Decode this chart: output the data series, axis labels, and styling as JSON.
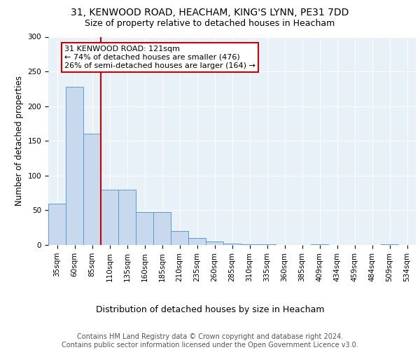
{
  "title_line1": "31, KENWOOD ROAD, HEACHAM, KING'S LYNN, PE31 7DD",
  "title_line2": "Size of property relative to detached houses in Heacham",
  "xlabel": "Distribution of detached houses by size in Heacham",
  "ylabel": "Number of detached properties",
  "bar_values": [
    60,
    228,
    160,
    80,
    80,
    47,
    47,
    20,
    10,
    5,
    2,
    1,
    1,
    0,
    0,
    1,
    0,
    0,
    0,
    1,
    0
  ],
  "bin_labels": [
    "35sqm",
    "60sqm",
    "85sqm",
    "110sqm",
    "135sqm",
    "160sqm",
    "185sqm",
    "210sqm",
    "235sqm",
    "260sqm",
    "285sqm",
    "310sqm",
    "335sqm",
    "360sqm",
    "385sqm",
    "409sqm",
    "434sqm",
    "459sqm",
    "484sqm",
    "509sqm",
    "534sqm"
  ],
  "bar_color": "#c8d9ed",
  "bar_edge_color": "#5b9bd5",
  "background_color": "#e8f0f8",
  "grid_color": "#ffffff",
  "red_line_x": 2.5,
  "annotation_text": "31 KENWOOD ROAD: 121sqm\n← 74% of detached houses are smaller (476)\n26% of semi-detached houses are larger (164) →",
  "annotation_box_color": "#ffffff",
  "annotation_box_edge": "#cc0000",
  "ylim": [
    0,
    300
  ],
  "yticks": [
    0,
    50,
    100,
    150,
    200,
    250,
    300
  ],
  "footer_text": "Contains HM Land Registry data © Crown copyright and database right 2024.\nContains public sector information licensed under the Open Government Licence v3.0.",
  "title_fontsize": 10,
  "subtitle_fontsize": 9,
  "xlabel_fontsize": 9,
  "ylabel_fontsize": 8.5,
  "tick_fontsize": 7.5,
  "footer_fontsize": 7,
  "annot_fontsize": 8
}
